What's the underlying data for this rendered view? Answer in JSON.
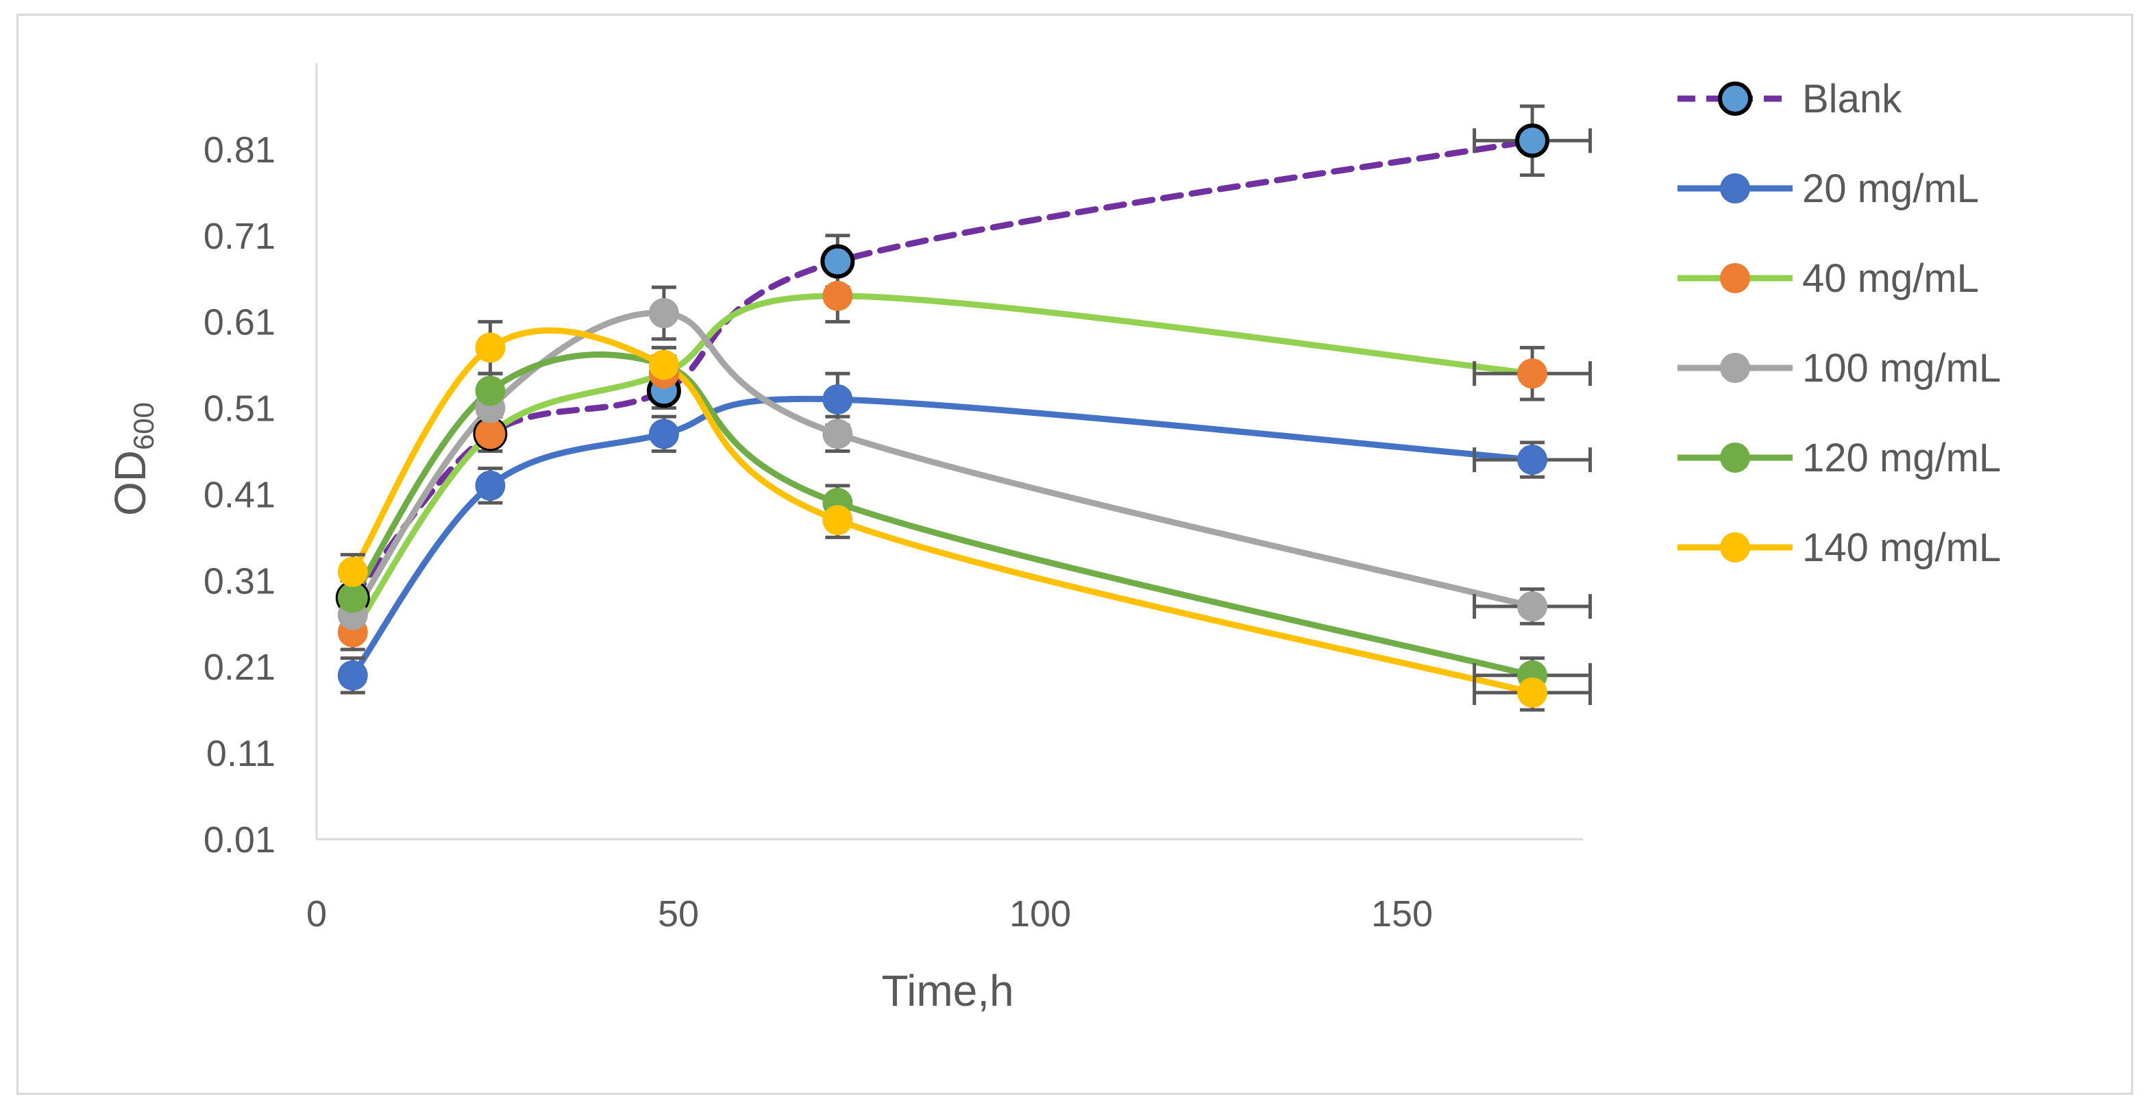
{
  "chart_data": {
    "type": "line",
    "title": "",
    "xlabel": "Time,h",
    "ylabel_main": "OD",
    "ylabel_sub": "600",
    "xlim": [
      0,
      175
    ],
    "ylim": [
      0.01,
      0.91
    ],
    "xticks": [
      0,
      50,
      100,
      150
    ],
    "yticks": [
      0.01,
      0.11,
      0.21,
      0.31,
      0.41,
      0.51,
      0.61,
      0.71,
      0.81
    ],
    "xtick_labels": [
      "0",
      "50",
      "100",
      "150"
    ],
    "ytick_labels": [
      "0.01",
      "0.11",
      "0.21",
      "0.31",
      "0.41",
      "0.51",
      "0.61",
      "0.71",
      "0.81"
    ],
    "grid": false,
    "legend_position": "right",
    "series": [
      {
        "name": "Blank",
        "line_color": "#7030a0",
        "marker_color": "#5b9bd5",
        "marker_edge": "#000000",
        "dashed": true,
        "x": [
          5,
          24,
          48,
          72,
          168
        ],
        "y": [
          0.29,
          0.48,
          0.53,
          0.68,
          0.82
        ],
        "y_err": [
          0.02,
          0.02,
          0.02,
          0.03,
          0.04
        ],
        "x_err": [
          0,
          0,
          0,
          0,
          8
        ]
      },
      {
        "name": "20 mg/mL",
        "line_color": "#4472c4",
        "marker_color": "#4472c4",
        "dashed": false,
        "x": [
          5,
          24,
          48,
          72,
          168
        ],
        "y": [
          0.2,
          0.42,
          0.48,
          0.52,
          0.45
        ],
        "y_err": [
          0.02,
          0.02,
          0.02,
          0.03,
          0.02
        ],
        "x_err": [
          0,
          0,
          0,
          0,
          8
        ]
      },
      {
        "name": "40 mg/mL",
        "line_color": "#92d050",
        "marker_color": "#ed7d31",
        "dashed": false,
        "x": [
          5,
          24,
          48,
          72,
          168
        ],
        "y": [
          0.25,
          0.48,
          0.55,
          0.64,
          0.55
        ],
        "y_err": [
          0.02,
          0.02,
          0.02,
          0.03,
          0.03
        ],
        "x_err": [
          0,
          0,
          0,
          0,
          8
        ]
      },
      {
        "name": "100 mg/mL",
        "line_color": "#a5a5a5",
        "marker_color": "#a5a5a5",
        "dashed": false,
        "x": [
          5,
          24,
          48,
          72,
          168
        ],
        "y": [
          0.27,
          0.51,
          0.62,
          0.48,
          0.28
        ],
        "y_err": [
          0.02,
          0.02,
          0.03,
          0.02,
          0.02
        ],
        "x_err": [
          0,
          0,
          0,
          0,
          8
        ]
      },
      {
        "name": "120 mg/mL",
        "line_color": "#70ad47",
        "marker_color": "#70ad47",
        "dashed": false,
        "x": [
          5,
          24,
          48,
          72,
          168
        ],
        "y": [
          0.29,
          0.53,
          0.56,
          0.4,
          0.2
        ],
        "y_err": [
          0.02,
          0.02,
          0.02,
          0.02,
          0.02
        ],
        "x_err": [
          0,
          0,
          0,
          0,
          8
        ]
      },
      {
        "name": "140 mg/mL",
        "line_color": "#ffc000",
        "marker_color": "#ffc000",
        "dashed": false,
        "x": [
          5,
          24,
          48,
          72,
          168
        ],
        "y": [
          0.32,
          0.58,
          0.56,
          0.38,
          0.18
        ],
        "y_err": [
          0.02,
          0.03,
          0.02,
          0.02,
          0.02
        ],
        "x_err": [
          0,
          0,
          0,
          0,
          8
        ]
      }
    ]
  }
}
